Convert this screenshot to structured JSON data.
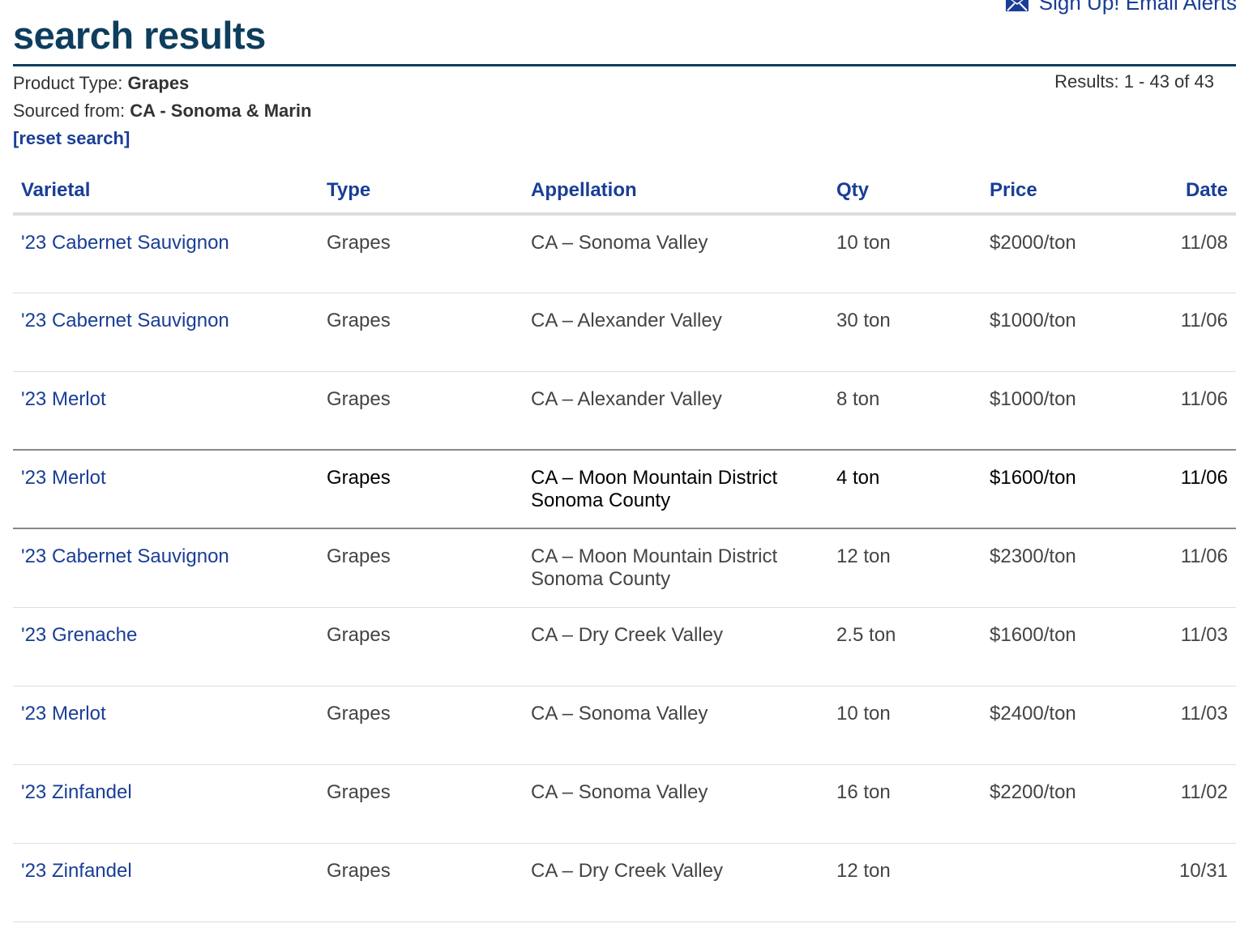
{
  "header": {
    "alerts_label": "Sign Up! Email Alerts",
    "title": "search results"
  },
  "filters": {
    "product_type_label": "Product Type:",
    "product_type_value": "Grapes",
    "sourced_from_label": "Sourced from:",
    "sourced_from_value": "CA - Sonoma & Marin",
    "reset_label": "[reset search]"
  },
  "results_count": "Results: 1 - 43 of 43",
  "table": {
    "columns": [
      "Varietal",
      "Type",
      "Appellation",
      "Qty",
      "Price",
      "Date"
    ],
    "rows": [
      {
        "varietal": "'23 Cabernet Sauvignon",
        "type": "Grapes",
        "appellation": "CA – Sonoma Valley",
        "qty": "10 ton",
        "price": "$2000/ton",
        "date": "11/08"
      },
      {
        "varietal": "'23 Cabernet Sauvignon",
        "type": "Grapes",
        "appellation": "CA – Alexander Valley",
        "qty": "30 ton",
        "price": "$1000/ton",
        "date": "11/06"
      },
      {
        "varietal": "'23 Merlot",
        "type": "Grapes",
        "appellation": "CA – Alexander Valley",
        "qty": "8 ton",
        "price": "$1000/ton",
        "date": "11/06"
      },
      {
        "varietal": "'23 Merlot",
        "type": "Grapes",
        "appellation": "CA – Moon Mountain District Sonoma County",
        "qty": "4 ton",
        "price": "$1600/ton",
        "date": "11/06"
      },
      {
        "varietal": "'23 Cabernet Sauvignon",
        "type": "Grapes",
        "appellation": "CA – Moon Mountain District Sonoma County",
        "qty": "12 ton",
        "price": "$2300/ton",
        "date": "11/06"
      },
      {
        "varietal": "'23 Grenache",
        "type": "Grapes",
        "appellation": "CA – Dry Creek Valley",
        "qty": "2.5 ton",
        "price": "$1600/ton",
        "date": "11/03"
      },
      {
        "varietal": "'23 Merlot",
        "type": "Grapes",
        "appellation": "CA – Sonoma Valley",
        "qty": "10 ton",
        "price": "$2400/ton",
        "date": "11/03"
      },
      {
        "varietal": "'23 Zinfandel",
        "type": "Grapes",
        "appellation": "CA – Sonoma Valley",
        "qty": "16 ton",
        "price": "$2200/ton",
        "date": "11/02"
      },
      {
        "varietal": "'23 Zinfandel",
        "type": "Grapes",
        "appellation": "CA – Dry Creek Valley",
        "qty": "12 ton",
        "price": "",
        "date": "10/31"
      }
    ],
    "hover_row_index": 3
  },
  "colors": {
    "title": "#0e3d5e",
    "link": "#1a3e96",
    "divider": "#dddddd"
  },
  "icons": {
    "alerts": "envelope-icon"
  }
}
